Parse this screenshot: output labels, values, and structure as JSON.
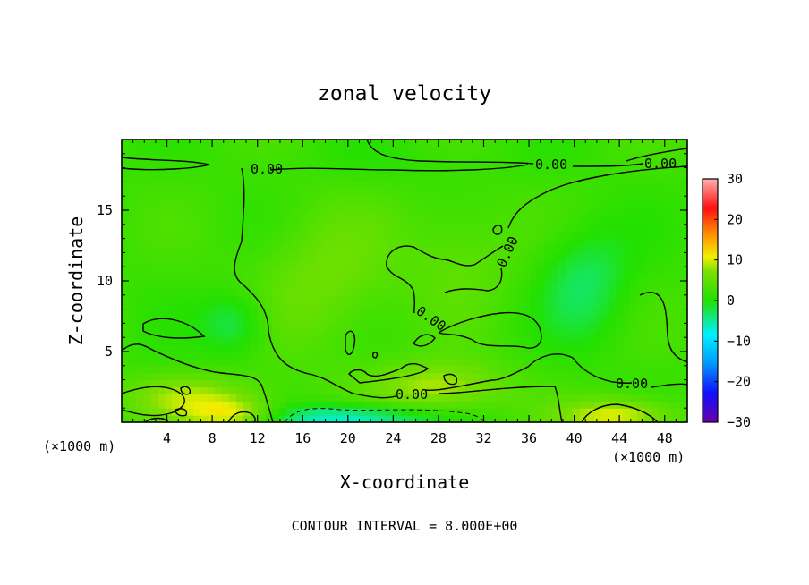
{
  "chart_data": {
    "type": "heatmap",
    "title": "zonal velocity",
    "xlabel": "X-coordinate",
    "ylabel": "Z-coordinate",
    "x_unit_left": "(×1000 m)",
    "x_unit_right": "(×1000 m)",
    "xlim": [
      0,
      50
    ],
    "ylim": [
      0,
      20
    ],
    "x_ticks": [
      4,
      8,
      12,
      16,
      20,
      24,
      28,
      32,
      36,
      40,
      44,
      48
    ],
    "y_ticks": [
      5,
      10,
      15
    ],
    "colorbar": {
      "range": [
        -30,
        30
      ],
      "ticks": [
        30,
        20,
        10,
        0,
        -10,
        -20,
        -30
      ],
      "tick_labels": [
        "30",
        "20",
        "10",
        "0",
        "−10",
        "−20",
        "−30"
      ]
    },
    "contour_labels": [
      "0.00",
      "0.00",
      "0.00",
      "0.00",
      "0.00",
      "0.00",
      "0.00"
    ],
    "footer": "CONTOUR INTERVAL = 8.000E+00",
    "features": [
      {
        "x": 6,
        "z": 1.8,
        "sx": 6,
        "sz": 1.6,
        "value": 6
      },
      {
        "x": 10,
        "z": 0.5,
        "sx": 4,
        "sz": 1.2,
        "value": 8
      },
      {
        "x": 20,
        "z": 0.3,
        "sx": 7,
        "sz": 1.0,
        "value": -10
      },
      {
        "x": 28,
        "z": 2.5,
        "sx": 6,
        "sz": 1.8,
        "value": 7
      },
      {
        "x": 44,
        "z": 0.5,
        "sx": 5,
        "sz": 1.2,
        "value": 9
      },
      {
        "x": 10,
        "z": 7,
        "sx": 3,
        "sz": 2.2,
        "value": -5
      },
      {
        "x": 41,
        "z": 10,
        "sx": 4,
        "sz": 4,
        "value": -5
      },
      {
        "x": 18,
        "z": 10,
        "sx": 6,
        "sz": 5,
        "value": 4
      },
      {
        "x": 30,
        "z": 12,
        "sx": 5,
        "sz": 4,
        "value": 3
      },
      {
        "x": 25,
        "z": 18.5,
        "sx": 12,
        "sz": 1.5,
        "value": -1
      }
    ]
  }
}
